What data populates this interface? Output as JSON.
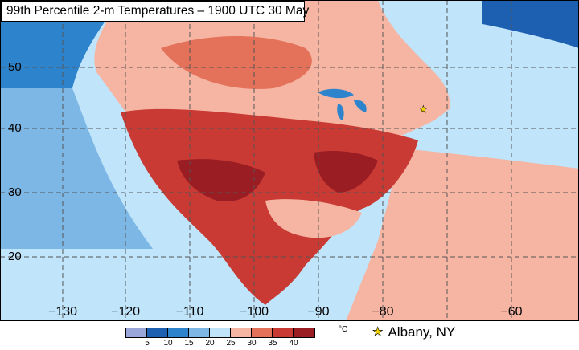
{
  "title": "99th Percentile 2-m Temperatures – 1900 UTC 30 May",
  "lat_labels": [
    "50",
    "40",
    "30",
    "20"
  ],
  "lon_labels": [
    "−130",
    "−120",
    "−110",
    "−100",
    "−90",
    "−80",
    "−60"
  ],
  "colorbar": {
    "unit": "°C",
    "tick_labels": [
      "5",
      "10",
      "15",
      "20",
      "25",
      "30",
      "35",
      "40"
    ],
    "levels": [
      0,
      5,
      10,
      15,
      20,
      25,
      30,
      35,
      40,
      45
    ],
    "colors": [
      "#9aa5d9",
      "#1d5fb0",
      "#2e84cc",
      "#7db7e6",
      "#c0e4fa",
      "#f5b5a2",
      "#e4715a",
      "#c83a33",
      "#9a1d24"
    ]
  },
  "legend": {
    "marker": "star-icon",
    "marker_color": "#f2d400",
    "label": "Albany, NY"
  }
}
